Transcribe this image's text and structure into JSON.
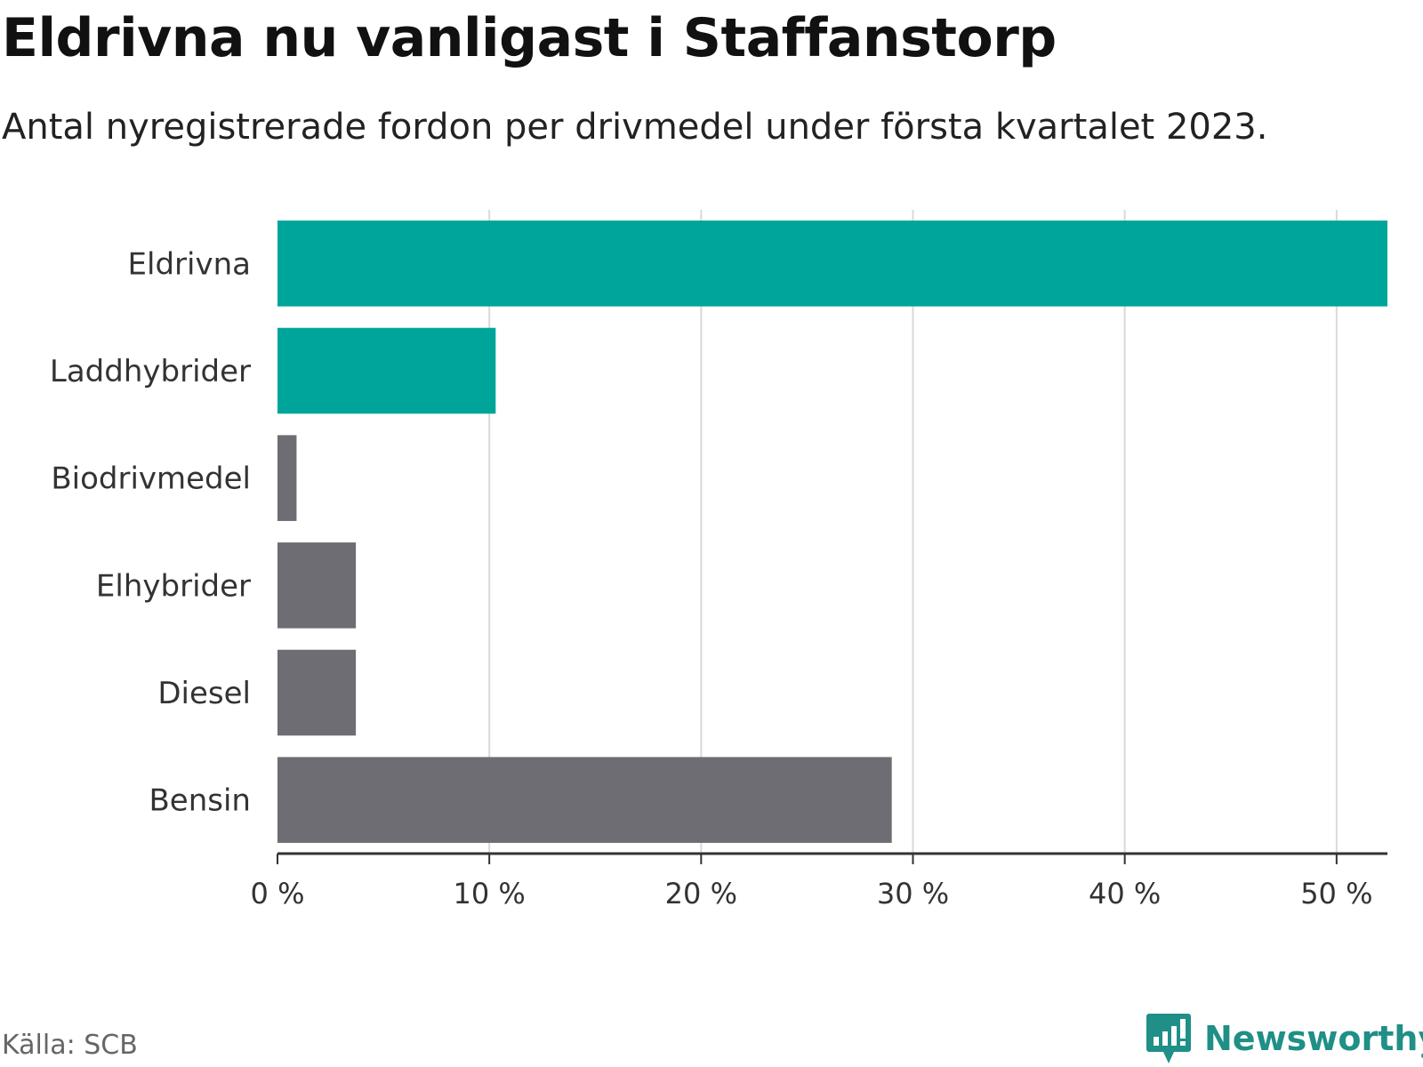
{
  "title": "Eldrivna nu vanligast i Staffanstorp",
  "subtitle": "Antal nyregistrerade fordon per drivmedel under första kvartalet 2023.",
  "source": "Källa: SCB",
  "brand": {
    "name": "Newsworthy",
    "icon": "newsworthy-logo-icon",
    "color": "#1f8f87"
  },
  "chart_data": {
    "type": "bar",
    "orientation": "horizontal",
    "categories": [
      "Eldrivna",
      "Laddhybrider",
      "Biodrivmedel",
      "Elhybrider",
      "Diesel",
      "Bensin"
    ],
    "values": [
      52.4,
      10.3,
      0.9,
      3.7,
      3.7,
      29.0
    ],
    "unit": "%",
    "xlim": [
      0,
      52.4
    ],
    "xticks": [
      0,
      10,
      20,
      30,
      40,
      50
    ],
    "xtick_labels": [
      "0 %",
      "10 %",
      "20 %",
      "30 %",
      "40 %",
      "50 %"
    ],
    "grid": "vertical",
    "colors": [
      "#00a59a",
      "#00a59a",
      "#6e6d74",
      "#6e6d74",
      "#6e6d74",
      "#6e6d74"
    ]
  }
}
